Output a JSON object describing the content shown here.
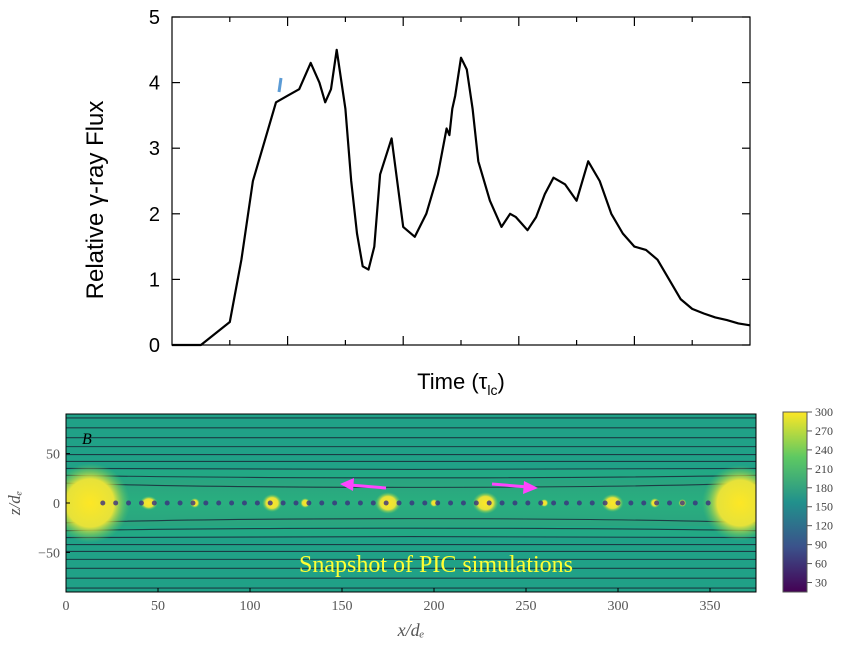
{
  "chart_data": [
    {
      "type": "line",
      "title": "",
      "xlabel": "Time (τlc)",
      "xlabel_main": "Time (",
      "xlabel_tau": "τ",
      "xlabel_sub": "lc",
      "xlabel_close": ")",
      "ylabel": "Relative γ-ray Flux",
      "ylim": [
        0,
        5
      ],
      "yticks": [
        "0",
        "1",
        "2",
        "3",
        "4",
        "5"
      ],
      "x_tick_labels_shown": false,
      "grid": false,
      "series": [
        {
          "color": "#000000",
          "x": [
            0,
            0.05,
            0.1,
            0.12,
            0.14,
            0.16,
            0.18,
            0.2,
            0.22,
            0.24,
            0.255,
            0.265,
            0.275,
            0.285,
            0.3,
            0.31,
            0.32,
            0.33,
            0.34,
            0.35,
            0.36,
            0.38,
            0.4,
            0.42,
            0.44,
            0.46,
            0.475,
            0.48,
            0.485,
            0.49,
            0.5,
            0.51,
            0.52,
            0.53,
            0.55,
            0.57,
            0.585,
            0.595,
            0.605,
            0.615,
            0.63,
            0.645,
            0.66,
            0.68,
            0.7,
            0.72,
            0.74,
            0.76,
            0.78,
            0.8,
            0.82,
            0.84,
            0.86,
            0.88,
            0.9,
            0.92,
            0.94,
            0.96,
            0.98,
            1
          ],
          "values": [
            0,
            0,
            0.35,
            1.3,
            2.5,
            3.1,
            3.7,
            3.8,
            3.9,
            4.3,
            4.0,
            3.7,
            3.9,
            4.5,
            3.6,
            2.5,
            1.7,
            1.2,
            1.15,
            1.5,
            2.6,
            3.15,
            1.8,
            1.65,
            2.0,
            2.6,
            3.3,
            3.2,
            3.6,
            3.8,
            4.38,
            4.2,
            3.6,
            2.8,
            2.2,
            1.8,
            2.0,
            1.95,
            1.85,
            1.75,
            1.95,
            2.3,
            2.55,
            2.45,
            2.2,
            2.8,
            2.5,
            2.0,
            1.7,
            1.5,
            1.45,
            1.3,
            1.0,
            0.7,
            0.55,
            0.48,
            0.42,
            0.38,
            0.33,
            0.3
          ]
        }
      ],
      "annotation_color": "#5b9bd5"
    },
    {
      "type": "heatmap",
      "panel_label": "B",
      "xlabel": "x/dₑ",
      "ylabel": "z/dₑ",
      "xlim": [
        0,
        375
      ],
      "ylim": [
        -90,
        90
      ],
      "xticks": [
        "0",
        "50",
        "100",
        "150",
        "200",
        "250",
        "300",
        "350"
      ],
      "yticks": [
        "50",
        "0",
        "−50"
      ],
      "colorbar": {
        "ticks": [
          "300",
          "270",
          "240",
          "210",
          "180",
          "150",
          "120",
          "90",
          "60",
          "30"
        ],
        "range": [
          15,
          300
        ],
        "colors": [
          "#440154",
          "#3b528b",
          "#21918c",
          "#5ec962",
          "#fde725"
        ]
      },
      "caption": "Snapshot of PIC simulations",
      "caption_color": "#ffff33",
      "arrow_color": "#ff44ff",
      "arrows": [
        "left",
        "right"
      ]
    }
  ]
}
